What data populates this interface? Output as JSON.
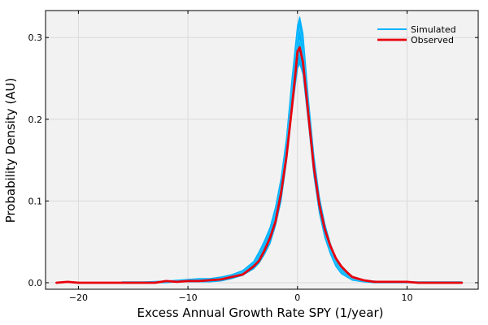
{
  "chart_data": {
    "type": "line",
    "xlabel": "Excess Annual Growth Rate SPY (1/year)",
    "ylabel": "Probability Density (AU)",
    "xlim": [
      -23,
      16.5
    ],
    "ylim": [
      -0.008,
      0.333
    ],
    "x_ticks": [
      -20,
      -10,
      0,
      10
    ],
    "x_tick_labels": [
      "−20",
      "−10",
      "0",
      "10"
    ],
    "y_ticks": [
      0.0,
      0.1,
      0.2,
      0.3
    ],
    "y_tick_labels": [
      "0.0",
      "0.1",
      "0.2",
      "0.3"
    ],
    "grid": true,
    "legend_position": "top-right",
    "series": [
      {
        "name": "Simulated",
        "color": "#00b2ff",
        "note_kind": "ensemble of many simulated density curves (band)",
        "x": [
          -16,
          -14,
          -12,
          -11,
          -10,
          -9,
          -8,
          -7,
          -6,
          -5,
          -4,
          -3.5,
          -3,
          -2.5,
          -2,
          -1.5,
          -1,
          -0.5,
          0,
          0.2,
          0.5,
          1,
          1.5,
          2,
          2.5,
          3,
          3.5,
          4,
          5,
          6,
          7,
          8,
          10,
          12,
          14,
          15
        ],
        "y_lower": [
          0.0,
          0.0,
          0.0,
          0.001,
          0.001,
          0.001,
          0.001,
          0.002,
          0.005,
          0.009,
          0.017,
          0.024,
          0.035,
          0.048,
          0.07,
          0.1,
          0.148,
          0.21,
          0.262,
          0.268,
          0.255,
          0.195,
          0.13,
          0.085,
          0.055,
          0.035,
          0.02,
          0.011,
          0.003,
          0.001,
          0.0,
          0.0,
          0.0,
          0.0,
          0.0,
          0.0
        ],
        "y_upper": [
          0.001,
          0.001,
          0.002,
          0.003,
          0.004,
          0.005,
          0.005,
          0.007,
          0.01,
          0.015,
          0.026,
          0.038,
          0.052,
          0.068,
          0.093,
          0.128,
          0.178,
          0.25,
          0.315,
          0.325,
          0.305,
          0.225,
          0.155,
          0.105,
          0.072,
          0.048,
          0.03,
          0.018,
          0.007,
          0.003,
          0.002,
          0.001,
          0.001,
          0.001,
          0.001,
          0.001
        ]
      },
      {
        "name": "Observed",
        "color": "#e8000b",
        "x": [
          -22,
          -21,
          -20,
          -19,
          -18,
          -17,
          -16,
          -15,
          -14,
          -13,
          -12,
          -11,
          -10,
          -9,
          -8,
          -7,
          -6,
          -5,
          -4.5,
          -4,
          -3.5,
          -3,
          -2.5,
          -2,
          -1.5,
          -1,
          -0.5,
          -0.2,
          0,
          0.2,
          0.5,
          1,
          1.5,
          2,
          2.5,
          3,
          3.5,
          4,
          4.5,
          5,
          6,
          7,
          8,
          9,
          10,
          11,
          12,
          13,
          14,
          15
        ],
        "y": [
          0.0,
          0.001,
          0.0,
          0.0,
          0.0,
          0.0,
          0.0,
          0.0,
          0.0,
          0.0,
          0.002,
          0.001,
          0.002,
          0.002,
          0.003,
          0.004,
          0.007,
          0.01,
          0.015,
          0.02,
          0.027,
          0.04,
          0.055,
          0.075,
          0.11,
          0.155,
          0.215,
          0.255,
          0.283,
          0.288,
          0.27,
          0.205,
          0.14,
          0.095,
          0.065,
          0.045,
          0.03,
          0.02,
          0.013,
          0.007,
          0.003,
          0.001,
          0.001,
          0.001,
          0.001,
          0.0,
          0.0,
          0.0,
          0.0,
          0.0
        ]
      }
    ]
  }
}
